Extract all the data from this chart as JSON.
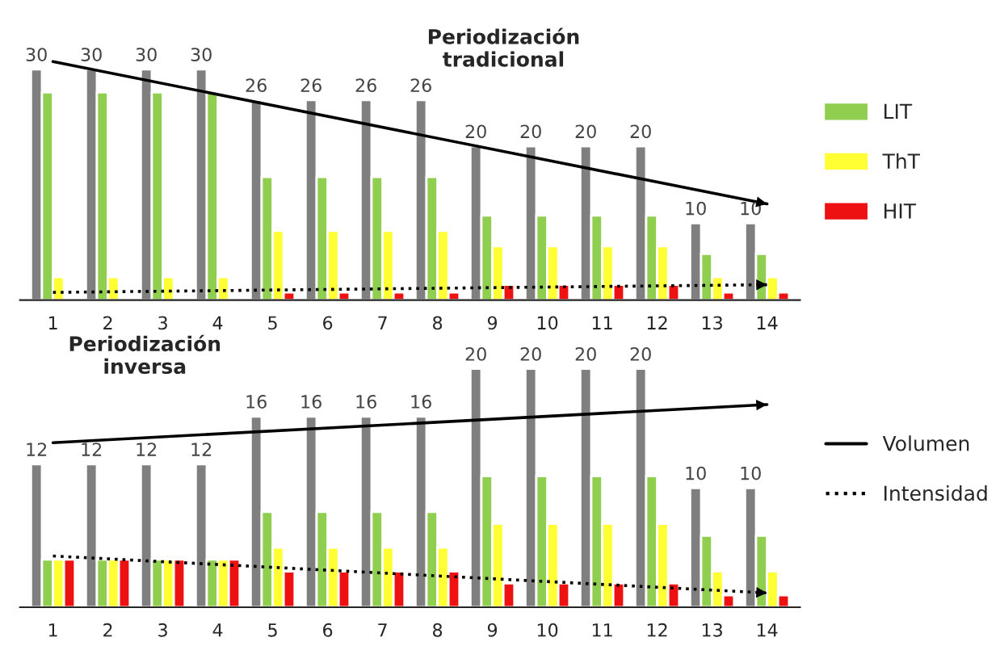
{
  "chart_data": [
    {
      "type": "bar",
      "categories": [
        "1",
        "2",
        "3",
        "4",
        "5",
        "6",
        "7",
        "8",
        "9",
        "10",
        "11",
        "12",
        "13",
        "14"
      ],
      "annotations": [
        "Periodización\ntradicional"
      ],
      "legend": "right",
      "grid": false,
      "series": [
        {
          "color": "#7f7f7f",
          "values": [
            30,
            30,
            30,
            30,
            26,
            26,
            26,
            26,
            20,
            20,
            20,
            20,
            10,
            10
          ],
          "value_labels": [
            "30",
            "30",
            "30",
            "30",
            "26",
            "26",
            "26",
            "26",
            "20",
            "20",
            "20",
            "20",
            "10",
            "10"
          ]
        },
        {
          "name": "LIT",
          "color": "#8fce4f",
          "values": [
            27,
            27,
            27,
            27,
            16,
            16,
            16,
            16,
            11,
            11,
            11,
            11,
            6,
            6
          ]
        },
        {
          "name": "ThT",
          "color": "#ffff33",
          "values": [
            3,
            3,
            3,
            3,
            9,
            9,
            9,
            9,
            7,
            7,
            7,
            7,
            3,
            3
          ]
        },
        {
          "name": "HIT",
          "color": "#ee1111",
          "values": [
            null,
            null,
            null,
            null,
            1,
            1,
            1,
            1,
            2,
            2,
            2,
            2,
            1,
            1
          ]
        },
        {
          "type": "line",
          "color": "#000000",
          "line_style": "solid",
          "x": [
            "1",
            "14"
          ],
          "values": [
            31,
            12.5
          ]
        },
        {
          "type": "line",
          "color": "#000000",
          "line_style": "dotted",
          "x": [
            "1",
            "14"
          ],
          "values": [
            1,
            2
          ]
        }
      ]
    },
    {
      "type": "bar",
      "categories": [
        "1",
        "2",
        "3",
        "4",
        "5",
        "6",
        "7",
        "8",
        "9",
        "10",
        "11",
        "12",
        "13",
        "14"
      ],
      "annotations": [
        "Periodización\ninversa"
      ],
      "legend": "right",
      "grid": false,
      "series": [
        {
          "color": "#7f7f7f",
          "values": [
            12,
            12,
            12,
            12,
            16,
            16,
            16,
            16,
            20,
            20,
            20,
            20,
            10,
            10
          ],
          "value_labels": [
            "12",
            "12",
            "12",
            "12",
            "16",
            "16",
            "16",
            "16",
            "20",
            "20",
            "20",
            "20",
            "10",
            "10"
          ]
        },
        {
          "color": "#8fce4f",
          "values": [
            4,
            4,
            4,
            4,
            8,
            8,
            8,
            8,
            11,
            11,
            11,
            11,
            6,
            6
          ]
        },
        {
          "color": "#ffff33",
          "values": [
            4,
            4,
            4,
            4,
            5,
            5,
            5,
            5,
            7,
            7,
            7,
            7,
            3,
            3
          ]
        },
        {
          "color": "#ee1111",
          "values": [
            4,
            4,
            4,
            4,
            3,
            3,
            3,
            3,
            2,
            2,
            2,
            2,
            1,
            1
          ]
        },
        {
          "type": "line",
          "name": "Volumen",
          "color": "#000000",
          "line_style": "solid",
          "x": [
            "1",
            "14"
          ],
          "values": [
            13.8,
            17
          ]
        },
        {
          "type": "line",
          "name": "Intensidad",
          "color": "#000000",
          "line_style": "dotted",
          "x": [
            "1",
            "14"
          ],
          "values": [
            4.3,
            1.2
          ]
        }
      ]
    }
  ]
}
